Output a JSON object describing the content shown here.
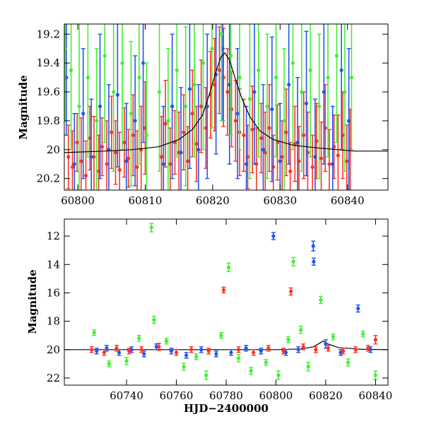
{
  "chart_data": [
    {
      "type": "scatter",
      "panel": "top",
      "title": "",
      "xlabel": "",
      "ylabel": "Magnitude",
      "xlim": [
        60798,
        60846
      ],
      "ylim": [
        20.28,
        19.13
      ],
      "y_inverted": true,
      "xticks": [
        60800,
        60810,
        60820,
        60830,
        60840
      ],
      "xtick_labels": [
        "60800",
        "60810",
        "60820",
        "60830",
        "60840"
      ],
      "yticks": [
        19.2,
        19.4,
        19.6,
        19.8,
        20,
        20.2
      ],
      "ytick_labels": [
        "19.2",
        "19.4",
        "19.6",
        "19.8",
        "20",
        "20.2"
      ],
      "grid": false,
      "legend": "none",
      "model_curve": {
        "color": "#000000",
        "x": [
          60798,
          60804,
          60808,
          60812,
          60815,
          60817,
          60818.5,
          60819.5,
          60820.5,
          60821.2,
          60821.8,
          60822.5,
          60823.3,
          60824.3,
          60825.5,
          60827,
          60829,
          60832,
          60836,
          60841,
          60846
        ],
        "y": [
          20.02,
          20.01,
          20.0,
          19.98,
          19.93,
          19.86,
          19.76,
          19.62,
          19.46,
          19.36,
          19.33,
          19.38,
          19.5,
          19.64,
          19.77,
          19.87,
          19.93,
          19.97,
          19.99,
          20.01,
          20.01
        ]
      },
      "series": [
        {
          "color": "#ff3322",
          "x": [
            60798.6,
            60799.2,
            60799.9,
            60800.5,
            60801.2,
            60801.8,
            60802.4,
            60803.1,
            60803.6,
            60804.3,
            60805,
            60805.6,
            60806.2,
            60806.9,
            60807.5,
            60808.2,
            60808.8,
            60809.4,
            60810,
            60812.4,
            60813,
            60813.7,
            60814.4,
            60815,
            60815.7,
            60816.3,
            60817,
            60817.6,
            60818.3,
            60819,
            60819.7,
            60820.3,
            60821,
            60821.6,
            60822.2,
            60822.8,
            60823.4,
            60824,
            60824.6,
            60825.2,
            60825.9,
            60826.5,
            60827.2,
            60827.8,
            60828.4,
            60829,
            60829.6,
            60830.3,
            60830.9,
            60831.5,
            60832.2,
            60832.8,
            60833.5,
            60834.1,
            60834.8,
            60835.4,
            60836.1,
            60836.7,
            60837.3,
            60838,
            60838.6,
            60839.3,
            60839.9,
            60840.4
          ],
          "y": [
            20.05,
            20.12,
            19.95,
            20.08,
            20.18,
            19.92,
            20.05,
            20.15,
            19.98,
            20.1,
            19.88,
            20.02,
            20.14,
            19.95,
            20.06,
            19.9,
            20.12,
            20.0,
            19.85,
            20.05,
            19.82,
            20.1,
            19.95,
            20.02,
            19.88,
            20.08,
            19.75,
            19.96,
            19.7,
            19.85,
            19.62,
            19.55,
            19.45,
            19.5,
            19.6,
            19.72,
            19.8,
            19.88,
            19.9,
            20.05,
            19.86,
            20.1,
            19.92,
            20.02,
            19.85,
            20.12,
            19.95,
            20.05,
            19.88,
            20.15,
            19.96,
            20.08,
            19.9,
            20.02,
            20.12,
            19.94,
            20.06,
            19.85,
            20.1,
            19.98,
            20.04,
            19.9,
            20.08,
            20.0
          ],
          "yerr": [
            0.22,
            0.25,
            0.2,
            0.3,
            0.24,
            0.22,
            0.28,
            0.25,
            0.2,
            0.3,
            0.25,
            0.22,
            0.26,
            0.24,
            0.2,
            0.28,
            0.25,
            0.3,
            0.32,
            0.28,
            0.3,
            0.25,
            0.22,
            0.28,
            0.26,
            0.24,
            0.3,
            0.26,
            0.32,
            0.28,
            0.3,
            0.32,
            0.3,
            0.34,
            0.3,
            0.26,
            0.28,
            0.3,
            0.25,
            0.22,
            0.3,
            0.25,
            0.24,
            0.28,
            0.3,
            0.22,
            0.26,
            0.25,
            0.3,
            0.2,
            0.26,
            0.24,
            0.3,
            0.28,
            0.22,
            0.26,
            0.25,
            0.3,
            0.24,
            0.22,
            0.28,
            0.3,
            0.25,
            0.28
          ]
        },
        {
          "color": "#2255ee",
          "x": [
            60798.3,
            60799.5,
            60800.8,
            60802,
            60803.3,
            60804.6,
            60805.9,
            60807.2,
            60808.5,
            60809.7,
            60812.7,
            60814,
            60815.3,
            60816.6,
            60817.9,
            60819.2,
            60820.5,
            60821.5,
            60822.5,
            60823.7,
            60825,
            60826.2,
            60827.5,
            60828.8,
            60830,
            60831.3,
            60832.6,
            60833.9,
            60835.2,
            60836.5,
            60837.8,
            60839.1,
            60840.2
          ],
          "y": [
            19.5,
            20.1,
            19.75,
            20.05,
            19.7,
            20.0,
            19.62,
            20.08,
            19.8,
            19.4,
            20.1,
            19.7,
            20.02,
            19.58,
            20.0,
            19.7,
            19.48,
            19.3,
            19.55,
            19.75,
            20.1,
            19.6,
            20.0,
            19.72,
            20.08,
            19.55,
            19.95,
            19.68,
            20.05,
            19.6,
            20.1,
            19.45,
            19.8
          ],
          "yerr": [
            0.4,
            0.35,
            0.45,
            0.4,
            0.5,
            0.45,
            0.5,
            0.4,
            0.45,
            0.55,
            0.4,
            0.5,
            0.45,
            0.55,
            0.45,
            0.5,
            0.55,
            0.5,
            0.55,
            0.45,
            0.4,
            0.5,
            0.45,
            0.5,
            0.4,
            0.55,
            0.45,
            0.5,
            0.4,
            0.5,
            0.4,
            0.55,
            0.5
          ]
        },
        {
          "color": "#44ee33",
          "x": [
            60798.1,
            60799,
            60800.2,
            60801.5,
            60802.8,
            60804,
            60805.3,
            60806.6,
            60807.9,
            60809.1,
            60810.2,
            60812.1,
            60813.4,
            60814.7,
            60816,
            60817.3,
            60818.6,
            60819.9,
            60821.3,
            60822.7,
            60824,
            60825.5,
            60826.8,
            60828.1,
            60829.4,
            60830.6,
            60831.9,
            60833.2,
            60834.5,
            60835.8,
            60837.1,
            60838.4,
            60839.6,
            60840.6
          ],
          "y": [
            19.3,
            19.45,
            19.7,
            19.5,
            19.8,
            19.35,
            19.6,
            19.4,
            19.75,
            19.5,
            19.9,
            19.6,
            19.8,
            19.45,
            19.7,
            19.55,
            19.4,
            19.3,
            19.2,
            19.35,
            19.5,
            19.65,
            19.45,
            19.7,
            19.5,
            19.8,
            19.4,
            19.6,
            19.45,
            19.7,
            19.5,
            19.35,
            19.6,
            19.5
          ],
          "yerr": [
            0.5,
            0.55,
            0.6,
            0.55,
            0.5,
            0.6,
            0.55,
            0.6,
            0.5,
            0.6,
            0.5,
            0.55,
            0.5,
            0.6,
            0.55,
            0.5,
            0.6,
            0.55,
            0.6,
            0.55,
            0.5,
            0.55,
            0.6,
            0.5,
            0.55,
            0.5,
            0.6,
            0.55,
            0.6,
            0.5,
            0.55,
            0.6,
            0.55,
            0.5
          ]
        }
      ]
    },
    {
      "type": "scatter",
      "panel": "bottom",
      "title": "",
      "xlabel": "HJD−2400000",
      "ylabel": "Magnitude",
      "xlim": [
        60715,
        60845
      ],
      "ylim": [
        22.5,
        10.8
      ],
      "y_inverted": true,
      "xticks": [
        60740,
        60760,
        60780,
        60800,
        60820,
        60840
      ],
      "xtick_labels": [
        "60740",
        "60760",
        "60780",
        "60800",
        "60820",
        "60840"
      ],
      "yticks": [
        12,
        14,
        16,
        18,
        20,
        22
      ],
      "ytick_labels": [
        "12",
        "14",
        "16",
        "18",
        "20",
        "22"
      ],
      "grid": false,
      "legend": "none",
      "model_curve": {
        "color": "#000000",
        "x": [
          60715,
          60800,
          60810,
          60815,
          60817,
          60819,
          60821,
          60825,
          60835,
          60845
        ],
        "y": [
          20.0,
          20.0,
          19.95,
          19.8,
          19.6,
          19.4,
          19.6,
          19.85,
          19.98,
          20.0
        ]
      },
      "series": [
        {
          "color": "#2255ee",
          "x": [
            60728,
            60732,
            60737,
            60742,
            60747,
            60752,
            60758,
            60764,
            60770,
            60776,
            60782,
            60788,
            60794,
            60799,
            60804,
            60809,
            60815,
            60815.2,
            60820,
            60826,
            60833,
            60838
          ],
          "y": [
            20.1,
            19.9,
            20.2,
            20.0,
            20.3,
            19.8,
            20.1,
            20.4,
            20.0,
            20.3,
            20.2,
            19.9,
            20.1,
            12.0,
            20.2,
            20.0,
            12.7,
            13.8,
            19.6,
            20.2,
            17.1,
            20.0
          ],
          "yerr": [
            0.2,
            0.2,
            0.2,
            0.2,
            0.2,
            0.2,
            0.2,
            0.2,
            0.2,
            0.2,
            0.2,
            0.2,
            0.2,
            0.25,
            0.2,
            0.2,
            0.35,
            0.25,
            0.3,
            0.2,
            0.25,
            0.2
          ]
        },
        {
          "color": "#44ee33",
          "x": [
            60727,
            60733,
            60740,
            60745,
            60750,
            60751,
            60756,
            60763,
            60768,
            60772,
            60778,
            60781,
            60785,
            60790,
            60796,
            60801,
            60805,
            60807,
            60810,
            60813,
            60818,
            60823,
            60829,
            60835,
            60840
          ],
          "y": [
            18.8,
            21.0,
            20.8,
            19.2,
            11.4,
            17.9,
            19.4,
            21.2,
            20.5,
            21.8,
            19.0,
            14.2,
            20.6,
            21.5,
            20.9,
            21.8,
            19.3,
            13.8,
            18.6,
            21.2,
            16.5,
            19.1,
            20.9,
            18.9,
            21.8
          ],
          "yerr": [
            0.2,
            0.2,
            0.25,
            0.2,
            0.3,
            0.25,
            0.2,
            0.25,
            0.2,
            0.3,
            0.2,
            0.3,
            0.25,
            0.25,
            0.2,
            0.3,
            0.2,
            0.3,
            0.25,
            0.3,
            0.25,
            0.2,
            0.25,
            0.2,
            0.3
          ]
        },
        {
          "color": "#ff3322",
          "x": [
            60726,
            60731,
            60736,
            60741,
            60746,
            60753,
            60760,
            60766,
            60773,
            60779,
            60785,
            60791,
            60797,
            60803,
            60806,
            60811,
            60816,
            60821,
            60827,
            60832,
            60837,
            60840
          ],
          "y": [
            20.0,
            20.2,
            19.9,
            20.1,
            20.0,
            19.8,
            20.2,
            20.0,
            20.1,
            15.8,
            20.0,
            20.2,
            19.9,
            20.1,
            15.9,
            19.8,
            20.0,
            19.9,
            20.1,
            20.0,
            19.9,
            19.3
          ],
          "yerr": [
            0.2,
            0.2,
            0.2,
            0.2,
            0.2,
            0.25,
            0.2,
            0.2,
            0.2,
            0.2,
            0.2,
            0.2,
            0.2,
            0.2,
            0.25,
            0.2,
            0.2,
            0.2,
            0.2,
            0.2,
            0.2,
            0.3
          ]
        }
      ]
    }
  ]
}
